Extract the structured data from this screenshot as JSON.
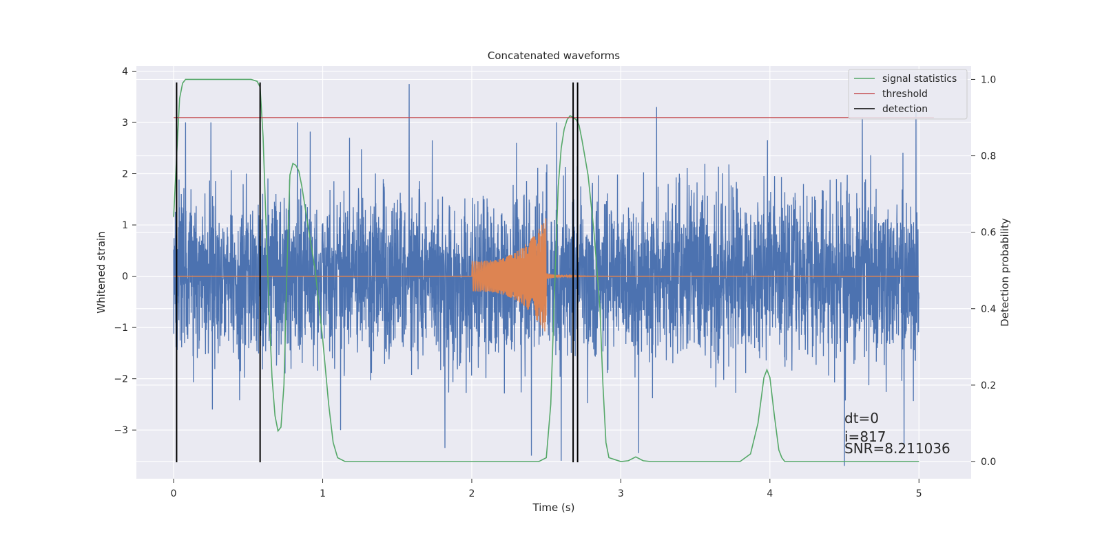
{
  "chart_data": {
    "type": "line",
    "title": "Concatenated waveforms",
    "xlabel": "Time (s)",
    "ylabel_left": "Whitened strain",
    "ylabel_right": "Detection probability",
    "xlim": [
      -0.25,
      5.35
    ],
    "ylim_left": [
      -3.95,
      4.1
    ],
    "ylim_right": [
      -0.045,
      1.035
    ],
    "x_ticks": [
      0,
      1,
      2,
      3,
      4,
      5
    ],
    "y_ticks_left": [
      -3,
      -2,
      -1,
      0,
      1,
      2,
      3,
      4
    ],
    "y_ticks_right": [
      0.0,
      0.2,
      0.4,
      0.6,
      0.8,
      1.0
    ],
    "x_tick_labels": [
      "0",
      "1",
      "2",
      "3",
      "4",
      "5"
    ],
    "y_tick_labels_left": [
      "−3",
      "−2",
      "−1",
      "0",
      "1",
      "2",
      "3",
      "4"
    ],
    "y_tick_labels_right": [
      "0.0",
      "0.2",
      "0.4",
      "0.6",
      "0.8",
      "1.0"
    ],
    "grid": true,
    "legend_position": "top-right",
    "legend": [
      {
        "label": "signal statistics",
        "color": "#55a868"
      },
      {
        "label": "threshold",
        "color": "#c44e52"
      },
      {
        "label": "detection",
        "color": "#000000"
      }
    ],
    "series": [
      {
        "name": "",
        "axis": "left",
        "color": "#4c72b0",
        "kind": "noise",
        "x_range": [
          0,
          5
        ],
        "std": 0.8,
        "spikes": [
          [
            0.08,
            3.0
          ],
          [
            0.25,
            3.0
          ],
          [
            0.83,
            3.0
          ],
          [
            1.18,
            2.7
          ],
          [
            1.58,
            3.75
          ],
          [
            2.3,
            2.6
          ],
          [
            2.57,
            3.0
          ],
          [
            3.24,
            3.3
          ],
          [
            4.62,
            3.1
          ],
          [
            4.98,
            3.2
          ],
          [
            0.26,
            -2.6
          ],
          [
            1.82,
            -3.35
          ],
          [
            2.4,
            -3.5
          ],
          [
            2.6,
            -3.6
          ],
          [
            3.12,
            -3.45
          ],
          [
            4.5,
            -3.7
          ],
          [
            4.9,
            -3.3
          ],
          [
            1.12,
            -3.0
          ]
        ]
      },
      {
        "name": "",
        "axis": "left",
        "color": "#dd8452",
        "kind": "chirp",
        "x_range": [
          0,
          5
        ],
        "chirp_start": 2.0,
        "chirp_end": 2.5,
        "amp_start": 0.3,
        "amp_peak": 1.15
      },
      {
        "name": "signal statistics",
        "axis": "right",
        "color": "#55a868",
        "x": [
          0.0,
          0.02,
          0.04,
          0.06,
          0.08,
          0.1,
          0.3,
          0.52,
          0.56,
          0.58,
          0.6,
          0.62,
          0.64,
          0.66,
          0.68,
          0.7,
          0.72,
          0.74,
          0.76,
          0.78,
          0.8,
          0.82,
          0.84,
          0.86,
          0.9,
          0.95,
          1.0,
          1.04,
          1.07,
          1.1,
          1.15,
          2.45,
          2.5,
          2.53,
          2.56,
          2.58,
          2.6,
          2.62,
          2.64,
          2.66,
          2.68,
          2.7,
          2.72,
          2.74,
          2.78,
          2.82,
          2.86,
          2.88,
          2.9,
          2.92,
          3.0,
          3.05,
          3.1,
          3.15,
          3.2,
          3.8,
          3.87,
          3.92,
          3.96,
          3.98,
          4.0,
          4.03,
          4.06,
          4.08,
          4.1,
          4.15,
          5.0
        ],
        "y": [
          0.64,
          0.8,
          0.95,
          0.99,
          1.0,
          1.0,
          1.0,
          1.0,
          0.995,
          0.98,
          0.85,
          0.62,
          0.4,
          0.22,
          0.12,
          0.08,
          0.09,
          0.2,
          0.5,
          0.75,
          0.78,
          0.775,
          0.76,
          0.72,
          0.62,
          0.5,
          0.32,
          0.15,
          0.05,
          0.01,
          0.0,
          0.0,
          0.01,
          0.15,
          0.5,
          0.72,
          0.82,
          0.87,
          0.895,
          0.905,
          0.9,
          0.895,
          0.88,
          0.84,
          0.75,
          0.6,
          0.4,
          0.2,
          0.05,
          0.01,
          0.0,
          0.002,
          0.012,
          0.002,
          0.0,
          0.0,
          0.02,
          0.1,
          0.22,
          0.24,
          0.22,
          0.12,
          0.03,
          0.01,
          0.0,
          0.0,
          0.0
        ]
      },
      {
        "name": "threshold",
        "axis": "right",
        "color": "#c44e52",
        "x": [
          0.0,
          5.1
        ],
        "y": [
          0.9,
          0.9
        ]
      }
    ],
    "detections": [
      0.02,
      0.58,
      2.68,
      2.71
    ],
    "detection_y_range": [
      -3.63,
      3.78
    ],
    "annotations": [
      {
        "text": "dt=0",
        "x": 4.5,
        "y": -3.15
      },
      {
        "text": "i=817",
        "x": 4.5,
        "y": -3.5
      },
      {
        "text": "SNR=8.211036",
        "x": 4.5,
        "y": -3.72
      }
    ]
  }
}
